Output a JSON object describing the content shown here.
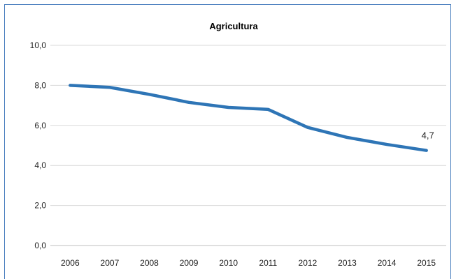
{
  "chart_data": {
    "type": "line",
    "title": "Agricultura",
    "xlabel": "",
    "ylabel": "",
    "categories": [
      "2006",
      "2007",
      "2008",
      "2009",
      "2010",
      "2011",
      "2012",
      "2013",
      "2014",
      "2015"
    ],
    "series": [
      {
        "values": [
          8.0,
          7.9,
          7.55,
          7.15,
          6.9,
          6.8,
          5.9,
          5.4,
          5.05,
          4.75
        ],
        "color": "#2e75b6"
      }
    ],
    "ylim": [
      0,
      10
    ],
    "yticks": [
      "0,0",
      "2,0",
      "4,0",
      "6,0",
      "8,0",
      "10,0"
    ],
    "ytick_values": [
      0,
      2,
      4,
      6,
      8,
      10
    ],
    "data_labels": [
      {
        "index": 9,
        "text": "4,7"
      }
    ],
    "grid": true,
    "legend": "none"
  }
}
